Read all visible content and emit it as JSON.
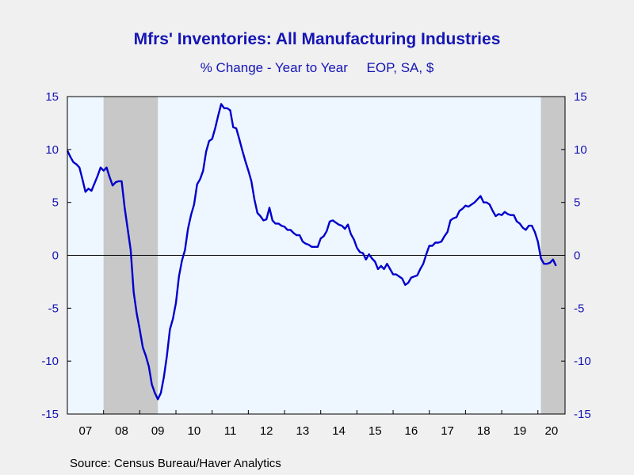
{
  "chart_data": {
    "type": "line",
    "title": "Mfrs' Inventories: All Manufacturing Industries",
    "subtitle": "% Change - Year to Year     EOP, SA, $",
    "source": "Source:  Census Bureau/Haver Analytics",
    "ylim": [
      -15,
      15
    ],
    "yticks": [
      15,
      10,
      5,
      0,
      -5,
      -10,
      -15
    ],
    "xlim": [
      "2007-01",
      "2020-10"
    ],
    "xtick_labels": [
      "07",
      "08",
      "09",
      "10",
      "11",
      "12",
      "13",
      "14",
      "15",
      "16",
      "17",
      "18",
      "19",
      "20"
    ],
    "recessions": [
      [
        "2008-01",
        "2009-06"
      ],
      [
        "2020-02",
        "2020-09"
      ]
    ],
    "colors": {
      "line": "#0000cc",
      "recession": "#c8c8c8",
      "plot_bg": "#eef6ff",
      "text": "#1515b5"
    },
    "series": [
      {
        "values": [
          [
            "2007-01",
            9.9
          ],
          [
            "2007-02",
            9.3
          ],
          [
            "2007-03",
            8.8
          ],
          [
            "2007-04",
            8.6
          ],
          [
            "2007-05",
            8.3
          ],
          [
            "2007-06",
            7.2
          ],
          [
            "2007-07",
            6.0
          ],
          [
            "2007-08",
            6.3
          ],
          [
            "2007-09",
            6.1
          ],
          [
            "2007-10",
            6.8
          ],
          [
            "2007-11",
            7.5
          ],
          [
            "2007-12",
            8.3
          ],
          [
            "2008-01",
            8.0
          ],
          [
            "2008-02",
            8.3
          ],
          [
            "2008-03",
            7.4
          ],
          [
            "2008-04",
            6.6
          ],
          [
            "2008-05",
            6.9
          ],
          [
            "2008-06",
            7.0
          ],
          [
            "2008-07",
            7.0
          ],
          [
            "2008-08",
            4.5
          ],
          [
            "2008-09",
            2.5
          ],
          [
            "2008-10",
            0.5
          ],
          [
            "2008-11",
            -3.5
          ],
          [
            "2008-12",
            -5.5
          ],
          [
            "2009-01",
            -7.0
          ],
          [
            "2009-02",
            -8.7
          ],
          [
            "2009-03",
            -9.5
          ],
          [
            "2009-04",
            -10.5
          ],
          [
            "2009-05",
            -12.2
          ],
          [
            "2009-06",
            -13.0
          ],
          [
            "2009-07",
            -13.6
          ],
          [
            "2009-08",
            -13.0
          ],
          [
            "2009-09",
            -11.5
          ],
          [
            "2009-10",
            -9.5
          ],
          [
            "2009-11",
            -7.0
          ],
          [
            "2009-12",
            -6.0
          ],
          [
            "2010-01",
            -4.5
          ],
          [
            "2010-02",
            -2.0
          ],
          [
            "2010-03",
            -0.5
          ],
          [
            "2010-04",
            0.5
          ],
          [
            "2010-05",
            2.5
          ],
          [
            "2010-06",
            3.8
          ],
          [
            "2010-07",
            4.8
          ],
          [
            "2010-08",
            6.7
          ],
          [
            "2010-09",
            7.2
          ],
          [
            "2010-10",
            8.0
          ],
          [
            "2010-11",
            9.8
          ],
          [
            "2010-12",
            10.8
          ],
          [
            "2011-01",
            11.0
          ],
          [
            "2011-02",
            12.0
          ],
          [
            "2011-03",
            13.2
          ],
          [
            "2011-04",
            14.3
          ],
          [
            "2011-05",
            13.9
          ],
          [
            "2011-06",
            13.9
          ],
          [
            "2011-07",
            13.7
          ],
          [
            "2011-08",
            12.1
          ],
          [
            "2011-09",
            12.0
          ],
          [
            "2011-10",
            11.0
          ],
          [
            "2011-11",
            9.9
          ],
          [
            "2011-12",
            8.9
          ],
          [
            "2012-01",
            8.0
          ],
          [
            "2012-02",
            7.0
          ],
          [
            "2012-03",
            5.3
          ],
          [
            "2012-04",
            4.0
          ],
          [
            "2012-05",
            3.7
          ],
          [
            "2012-06",
            3.3
          ],
          [
            "2012-07",
            3.4
          ],
          [
            "2012-08",
            4.5
          ],
          [
            "2012-09",
            3.3
          ],
          [
            "2012-10",
            3.0
          ],
          [
            "2012-11",
            3.0
          ],
          [
            "2012-12",
            2.8
          ],
          [
            "2013-01",
            2.7
          ],
          [
            "2013-02",
            2.4
          ],
          [
            "2013-03",
            2.4
          ],
          [
            "2013-04",
            2.1
          ],
          [
            "2013-05",
            1.9
          ],
          [
            "2013-06",
            1.9
          ],
          [
            "2013-07",
            1.3
          ],
          [
            "2013-08",
            1.1
          ],
          [
            "2013-09",
            1.0
          ],
          [
            "2013-10",
            0.8
          ],
          [
            "2013-11",
            0.8
          ],
          [
            "2013-12",
            0.8
          ],
          [
            "2014-01",
            1.6
          ],
          [
            "2014-02",
            1.8
          ],
          [
            "2014-03",
            2.3
          ],
          [
            "2014-04",
            3.2
          ],
          [
            "2014-05",
            3.3
          ],
          [
            "2014-06",
            3.1
          ],
          [
            "2014-07",
            2.9
          ],
          [
            "2014-08",
            2.8
          ],
          [
            "2014-09",
            2.5
          ],
          [
            "2014-10",
            2.9
          ],
          [
            "2014-11",
            2.0
          ],
          [
            "2014-12",
            1.5
          ],
          [
            "2015-01",
            0.7
          ],
          [
            "2015-02",
            0.3
          ],
          [
            "2015-03",
            0.2
          ],
          [
            "2015-04",
            -0.4
          ],
          [
            "2015-05",
            0.1
          ],
          [
            "2015-06",
            -0.3
          ],
          [
            "2015-07",
            -0.6
          ],
          [
            "2015-08",
            -1.3
          ],
          [
            "2015-09",
            -1.0
          ],
          [
            "2015-10",
            -1.3
          ],
          [
            "2015-11",
            -0.8
          ],
          [
            "2015-12",
            -1.3
          ],
          [
            "2016-01",
            -1.8
          ],
          [
            "2016-02",
            -1.8
          ],
          [
            "2016-03",
            -2.0
          ],
          [
            "2016-04",
            -2.2
          ],
          [
            "2016-05",
            -2.8
          ],
          [
            "2016-06",
            -2.6
          ],
          [
            "2016-07",
            -2.1
          ],
          [
            "2016-08",
            -2.0
          ],
          [
            "2016-09",
            -1.9
          ],
          [
            "2016-10",
            -1.3
          ],
          [
            "2016-11",
            -0.8
          ],
          [
            "2016-12",
            0.1
          ],
          [
            "2017-01",
            0.9
          ],
          [
            "2017-02",
            0.9
          ],
          [
            "2017-03",
            1.2
          ],
          [
            "2017-04",
            1.2
          ],
          [
            "2017-05",
            1.3
          ],
          [
            "2017-06",
            1.8
          ],
          [
            "2017-07",
            2.2
          ],
          [
            "2017-08",
            3.3
          ],
          [
            "2017-09",
            3.5
          ],
          [
            "2017-10",
            3.6
          ],
          [
            "2017-11",
            4.2
          ],
          [
            "2017-12",
            4.4
          ],
          [
            "2018-01",
            4.7
          ],
          [
            "2018-02",
            4.6
          ],
          [
            "2018-03",
            4.8
          ],
          [
            "2018-04",
            5.0
          ],
          [
            "2018-05",
            5.3
          ],
          [
            "2018-06",
            5.6
          ],
          [
            "2018-07",
            5.0
          ],
          [
            "2018-08",
            5.0
          ],
          [
            "2018-09",
            4.8
          ],
          [
            "2018-10",
            4.2
          ],
          [
            "2018-11",
            3.7
          ],
          [
            "2018-12",
            3.9
          ],
          [
            "2019-01",
            3.8
          ],
          [
            "2019-02",
            4.1
          ],
          [
            "2019-03",
            3.9
          ],
          [
            "2019-04",
            3.8
          ],
          [
            "2019-05",
            3.8
          ],
          [
            "2019-06",
            3.2
          ],
          [
            "2019-07",
            3.0
          ],
          [
            "2019-08",
            2.6
          ],
          [
            "2019-09",
            2.4
          ],
          [
            "2019-10",
            2.8
          ],
          [
            "2019-11",
            2.8
          ],
          [
            "2019-12",
            2.2
          ],
          [
            "2020-01",
            1.3
          ],
          [
            "2020-02",
            -0.3
          ],
          [
            "2020-03",
            -0.8
          ],
          [
            "2020-04",
            -0.8
          ],
          [
            "2020-05",
            -0.7
          ],
          [
            "2020-06",
            -0.4
          ],
          [
            "2020-07",
            -1.0
          ]
        ]
      }
    ]
  }
}
